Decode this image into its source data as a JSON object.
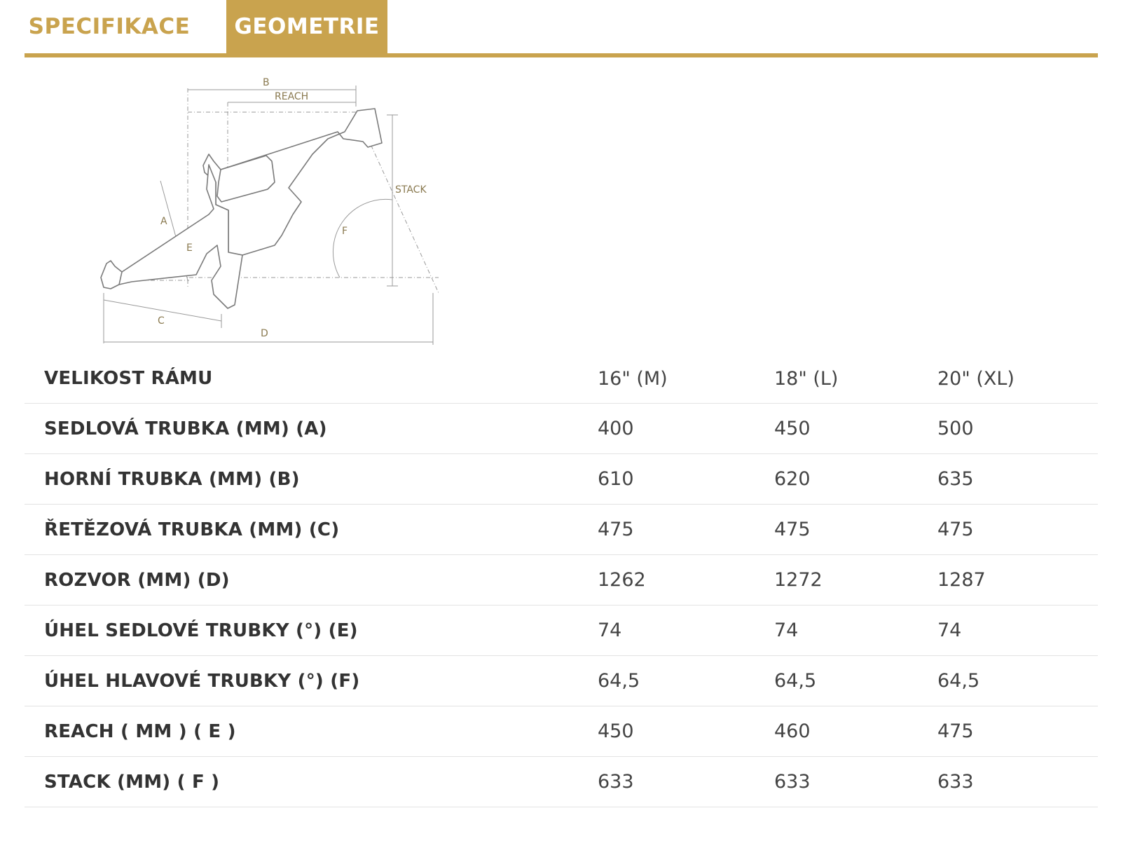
{
  "tabs": [
    {
      "label": "SPECIFIKACE",
      "active": false
    },
    {
      "label": "GEOMETRIE",
      "active": true
    }
  ],
  "colors": {
    "accent": "#c9a34e",
    "text": "#333333",
    "divider": "#e3e3e3"
  },
  "diagram": {
    "label_b": "B",
    "label_reach": "REACH",
    "label_stack": "STACK",
    "label_a": "A",
    "label_e": "E",
    "label_f": "F",
    "label_c": "C",
    "label_d": "D"
  },
  "table": {
    "header": {
      "label": "VELIKOST RÁMU",
      "sizes": [
        "16\" (M)",
        "18\" (L)",
        "20\" (XL)"
      ]
    },
    "rows": [
      {
        "label": "SEDLOVÁ TRUBKA (MM) (A)",
        "values": [
          "400",
          "450",
          "500"
        ]
      },
      {
        "label": "HORNÍ TRUBKA (MM) (B)",
        "values": [
          "610",
          "620",
          "635"
        ]
      },
      {
        "label": "ŘETĚZOVÁ TRUBKA (MM) (C)",
        "values": [
          "475",
          "475",
          "475"
        ]
      },
      {
        "label": "ROZVOR (MM) (D)",
        "values": [
          "1262",
          "1272",
          "1287"
        ]
      },
      {
        "label": "ÚHEL SEDLOVÉ TRUBKY (°) (E)",
        "values": [
          "74",
          "74",
          "74"
        ]
      },
      {
        "label": "ÚHEL HLAVOVÉ TRUBKY (°) (F)",
        "values": [
          "64,5",
          "64,5",
          "64,5"
        ]
      },
      {
        "label": "REACH ( MM ) ( E )",
        "values": [
          "450",
          "460",
          "475"
        ]
      },
      {
        "label": "STACK (MM) ( F )",
        "values": [
          "633",
          "633",
          "633"
        ]
      }
    ]
  }
}
